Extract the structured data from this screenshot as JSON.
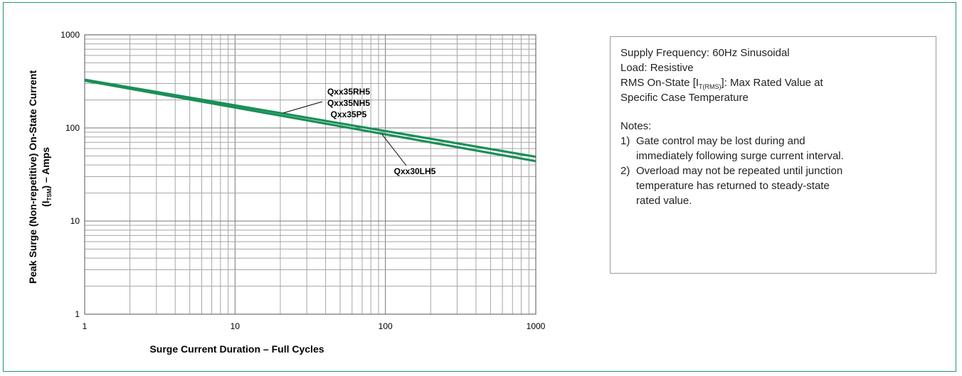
{
  "chart_data": {
    "type": "line",
    "xlabel": "Surge Current Duration – Full Cycles",
    "ylabel_line1": "Peak Surge (Non-repetitive) On-State Current",
    "ylabel_i": "(I",
    "ylabel_sub": "TSM",
    "ylabel_rest": ") – Amps",
    "x_scale": "log",
    "y_scale": "log",
    "xlim": [
      1,
      1000
    ],
    "ylim": [
      1,
      1000
    ],
    "x_ticks": [
      "1",
      "10",
      "100",
      "1000"
    ],
    "y_ticks": [
      "1",
      "10",
      "100",
      "1000"
    ],
    "grid": true,
    "color": "#1a8f58",
    "series": [
      {
        "name": "Qxx35RH5",
        "x": [
          1,
          1000
        ],
        "y": [
          330,
          49
        ]
      },
      {
        "name": "Qxx35NH5",
        "x": [
          1,
          1000
        ],
        "y": [
          330,
          49
        ]
      },
      {
        "name": "Qxx35P5",
        "x": [
          1,
          1000
        ],
        "y": [
          330,
          49
        ]
      },
      {
        "name": "Qxx30LH5",
        "x": [
          1,
          1000
        ],
        "y": [
          322,
          44
        ]
      }
    ]
  },
  "conditions": {
    "line1": "Supply Frequency: 60Hz Sinusoidal",
    "line2": "Load: Resistive",
    "line3_pre": "RMS On-State [I",
    "line3_sub": "T(RMS)",
    "line3_post": "]: Max Rated Value at",
    "line4": "Specific Case Temperature"
  },
  "notes": {
    "heading": "Notes:",
    "items": [
      {
        "num": "1)",
        "line1": "Gate control may be lost during and",
        "line2": "immediately following surge current interval."
      },
      {
        "num": "2)",
        "line1": "Overload may not be repeated until junction",
        "line2": "temperature has returned to steady-state",
        "line3": "rated value."
      }
    ]
  }
}
